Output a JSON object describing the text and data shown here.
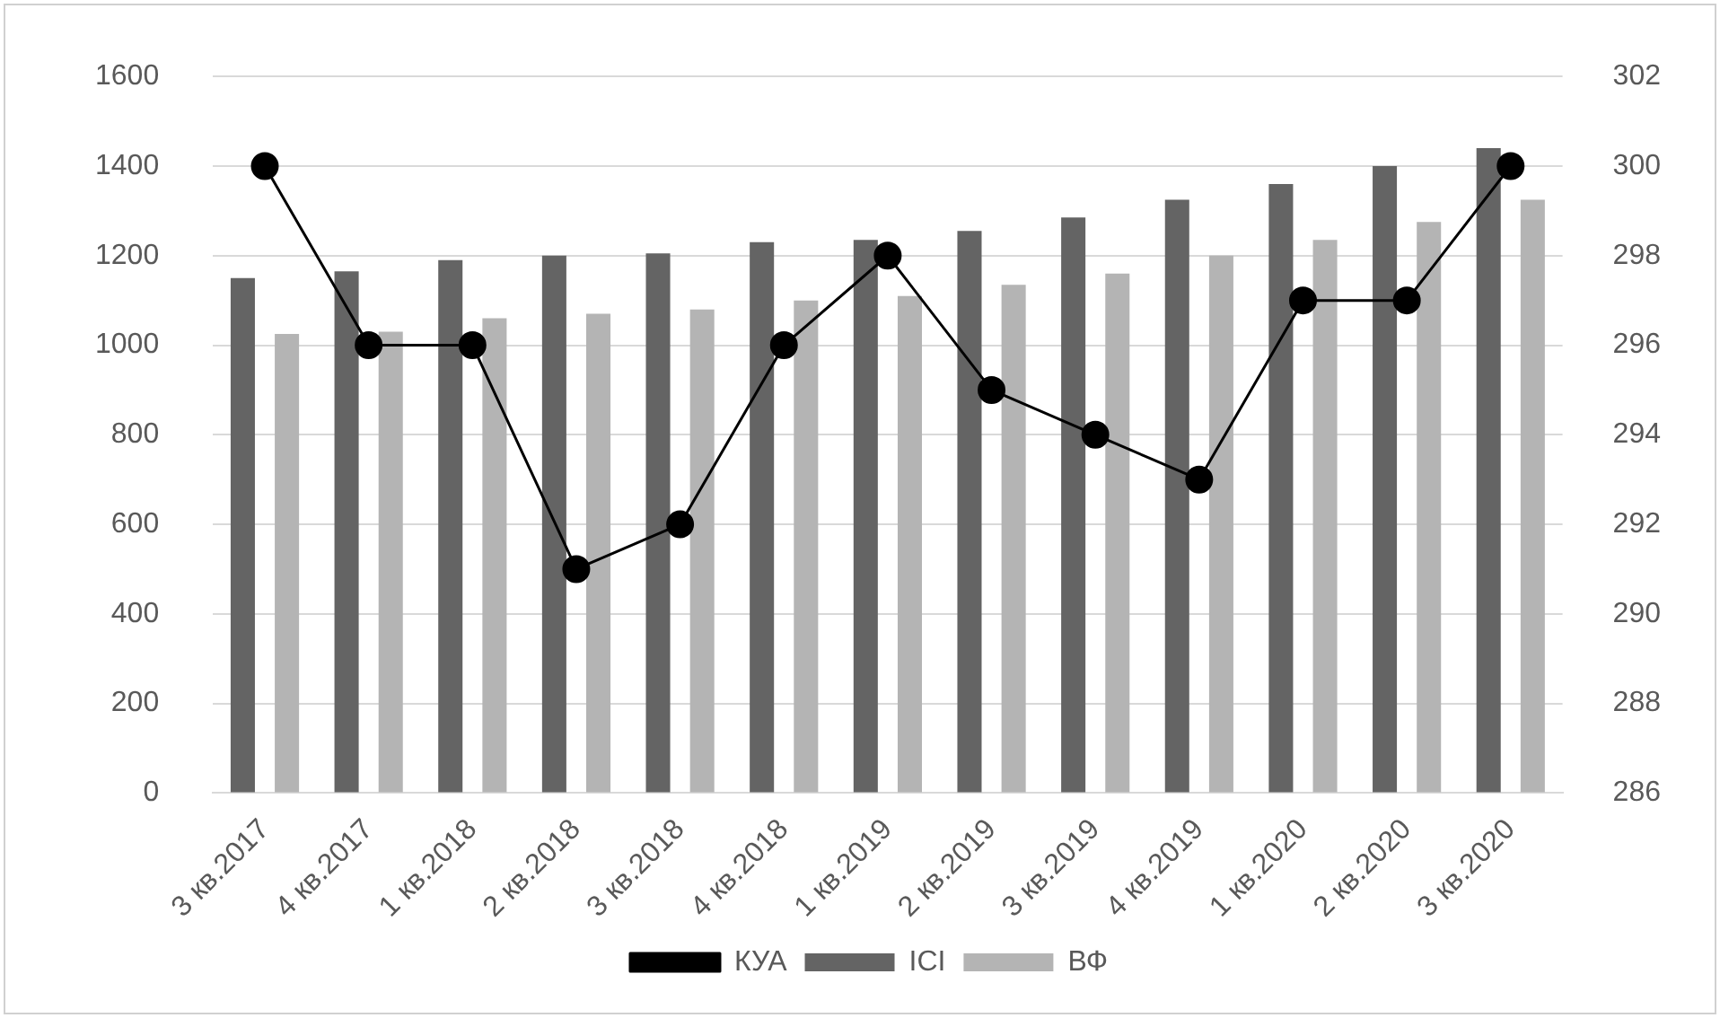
{
  "chart_data": {
    "type": "bar",
    "categories": [
      "3 кв.2017",
      "4 кв.2017",
      "1 кв.2018",
      "2 кв.2018",
      "3 кв.2018",
      "4 кв.2018",
      "1 кв.2019",
      "2 кв.2019",
      "3 кв.2019",
      "4 кв.2019",
      "1 кв.2020",
      "2 кв.2020",
      "3 кв.2020"
    ],
    "series": [
      {
        "name": "ICI",
        "color": "#646464",
        "values": [
          1150,
          1165,
          1190,
          1200,
          1205,
          1230,
          1235,
          1255,
          1285,
          1325,
          1360,
          1400,
          1440
        ]
      },
      {
        "name": "ВФ",
        "color": "#b4b4b4",
        "values": [
          1025,
          1030,
          1060,
          1070,
          1080,
          1100,
          1110,
          1135,
          1160,
          1200,
          1235,
          1275,
          1325
        ]
      },
      {
        "name": "КУА",
        "type": "line",
        "axis": "y2",
        "color": "#000000",
        "marker": "circle",
        "values": [
          300,
          296,
          296,
          291,
          292,
          296,
          298,
          295,
          294,
          293,
          297,
          297,
          300
        ]
      }
    ],
    "ylim": [
      0,
      1600
    ],
    "yticks": [
      0,
      200,
      400,
      600,
      800,
      1000,
      1200,
      1400,
      1600
    ],
    "y2lim": [
      286,
      302
    ],
    "y2ticks": [
      286,
      288,
      290,
      292,
      294,
      296,
      298,
      300,
      302
    ],
    "grid": "y",
    "legend": "bottom"
  }
}
